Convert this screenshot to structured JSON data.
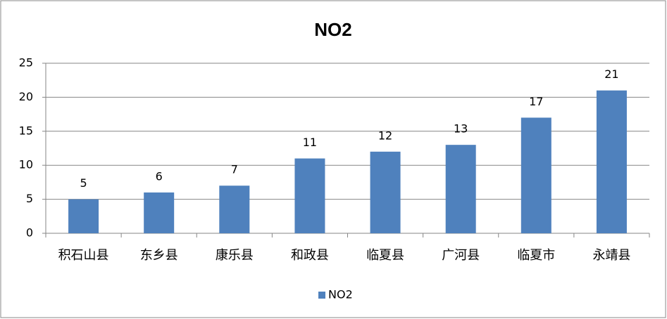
{
  "chart_data": {
    "type": "bar",
    "title": "NO2",
    "categories": [
      "积石山县",
      "东乡县",
      "康乐县",
      "和政县",
      "临夏县",
      "广河县",
      "临夏市",
      "永靖县"
    ],
    "series": [
      {
        "name": "NO2",
        "color": "#4f81bd",
        "values": [
          5,
          6,
          7,
          11,
          12,
          13,
          17,
          21
        ]
      }
    ],
    "ylim": [
      0,
      25
    ],
    "yticks": [
      0,
      5,
      10,
      15,
      20,
      25
    ],
    "grid": true,
    "legend": "bottom"
  }
}
